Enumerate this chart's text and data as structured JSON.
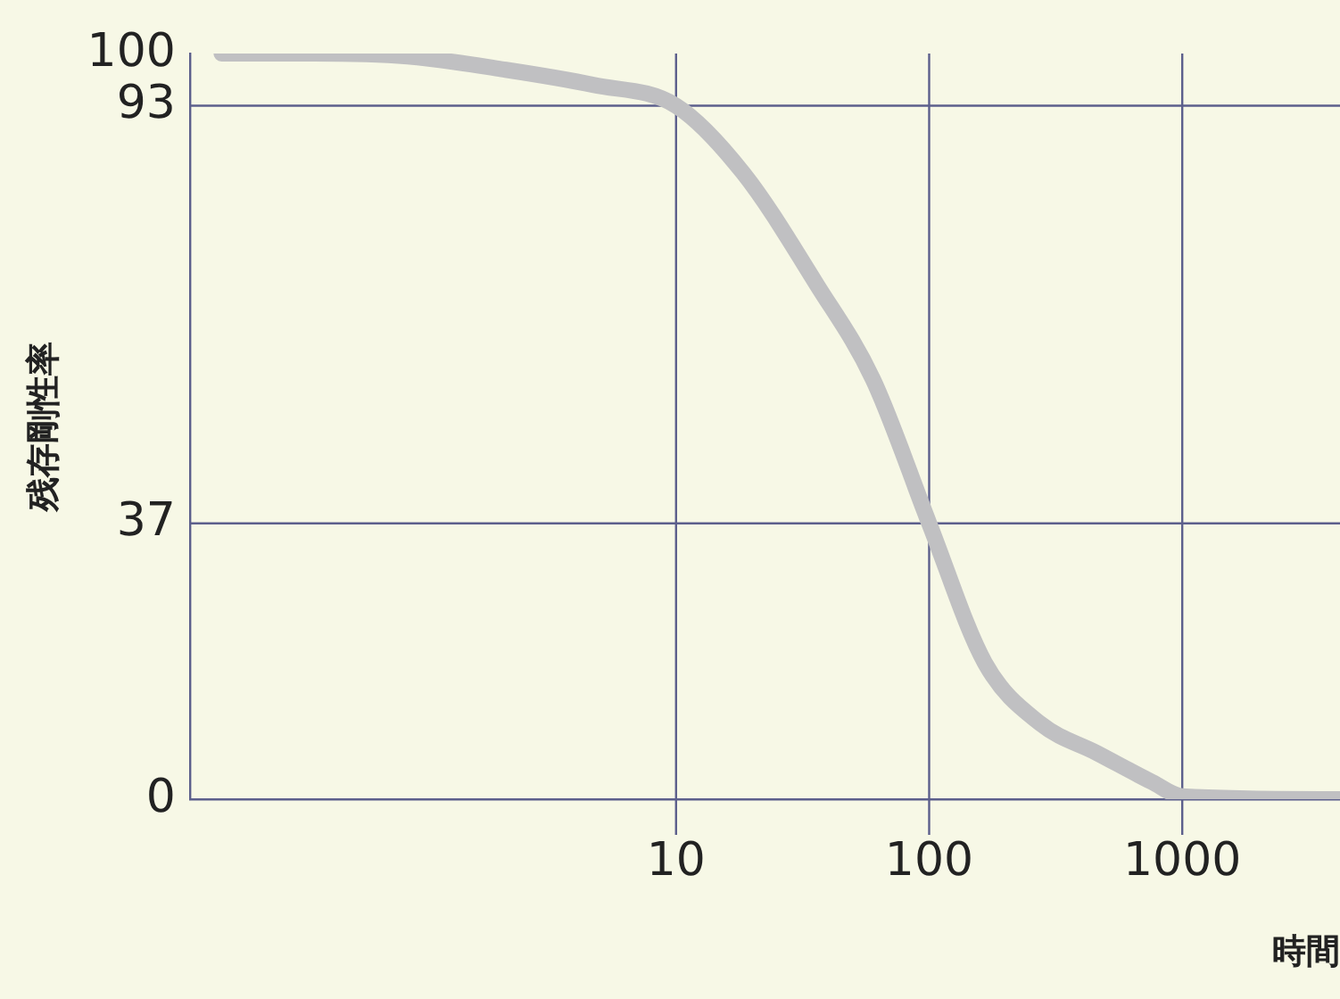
{
  "chart_data": {
    "type": "line",
    "xlabel": "時間",
    "ylabel": "残存剛性率",
    "log": "x",
    "x": [
      0.16,
      0.37,
      0.87,
      2.05,
      4.7,
      10,
      18.4,
      36,
      60,
      100,
      166,
      276,
      460,
      760,
      1000,
      4200
    ],
    "series": [
      {
        "color": "#c0c0c2",
        "values": [
          100,
          100,
          99.6,
          97.9,
          95.8,
          93,
          84,
          69,
          56.3,
          37,
          18.3,
          10.1,
          6.2,
          2.3,
          0.4,
          0
        ]
      }
    ],
    "xlim": [
      0.12,
      4200
    ],
    "xticks": [
      10,
      100,
      1000
    ],
    "ylim": [
      0,
      100
    ],
    "yticks": [
      0,
      37,
      93,
      100
    ],
    "ref_lines": [
      {
        "axis": "x",
        "value": 10,
        "color": "#5c5f8c"
      },
      {
        "axis": "x",
        "value": 100,
        "color": "#5c5f8c"
      },
      {
        "axis": "x",
        "value": 1000,
        "color": "#5c5f8c"
      },
      {
        "axis": "y",
        "value": 93,
        "color": "#5c5f8c"
      },
      {
        "axis": "y",
        "value": 37,
        "color": "#5c5f8c"
      }
    ],
    "grid": false,
    "legend": false,
    "marker": "none",
    "line_style": "solid"
  }
}
